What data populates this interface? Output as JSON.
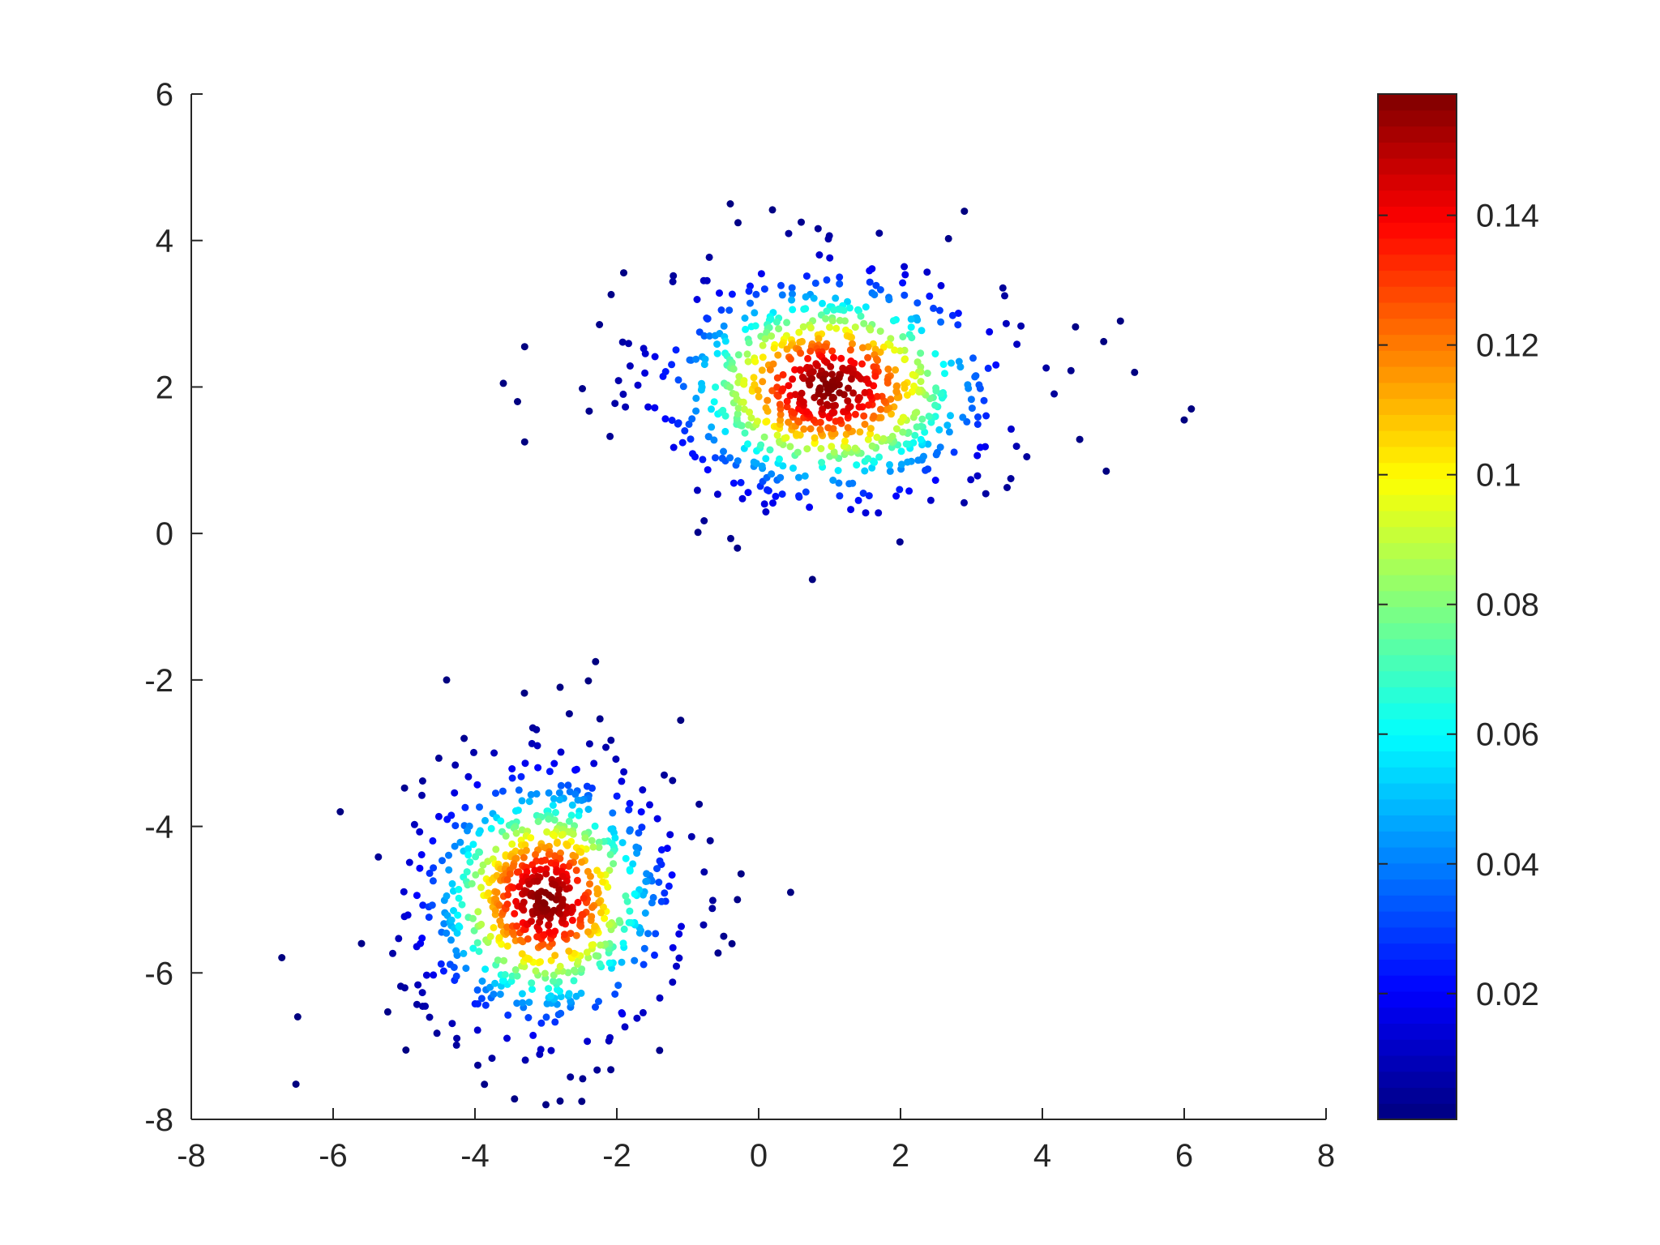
{
  "chart_data": {
    "type": "scatter",
    "title": "",
    "xlabel": "",
    "ylabel": "",
    "xlim": [
      -8,
      8
    ],
    "ylim": [
      -8,
      6
    ],
    "xticks": [
      "-8",
      "-6",
      "-4",
      "-2",
      "0",
      "2",
      "4",
      "6",
      "8"
    ],
    "yticks": [
      "-8",
      "-6",
      "-4",
      "-2",
      "0",
      "2",
      "4",
      "6"
    ],
    "grid": false,
    "box": false,
    "colormap": "jet",
    "colorbar": {
      "position": "right",
      "range": [
        0.0006,
        0.1587
      ],
      "ticks": [
        "0.02",
        "0.04",
        "0.06",
        "0.08",
        "0.1",
        "0.12",
        "0.14"
      ]
    },
    "color_encodes": "density",
    "clusters": [
      {
        "center": [
          1,
          2
        ],
        "std": [
          1.2,
          0.8
        ],
        "count": 800,
        "peak_density": 0.158
      },
      {
        "center": [
          -3,
          -5
        ],
        "std": [
          0.9,
          0.9
        ],
        "count": 800,
        "peak_density": 0.158
      }
    ],
    "outlier_points": [
      [
        -0.4,
        4.5
      ],
      [
        2.9,
        4.4
      ],
      [
        0.6,
        4.25
      ],
      [
        1.7,
        4.1
      ],
      [
        -3.6,
        2.05
      ],
      [
        -3.4,
        1.8
      ],
      [
        -3.3,
        1.25
      ],
      [
        -3.3,
        2.55
      ],
      [
        6.1,
        1.7
      ],
      [
        6.0,
        1.55
      ],
      [
        5.3,
        2.2
      ],
      [
        5.1,
        2.9
      ],
      [
        4.9,
        0.85
      ],
      [
        -0.3,
        -0.2
      ],
      [
        -2.3,
        -1.75
      ],
      [
        -4.4,
        -2.0
      ],
      [
        -2.8,
        -2.1
      ],
      [
        -6.5,
        -6.6
      ],
      [
        -5.9,
        -3.8
      ],
      [
        -5.6,
        -5.6
      ],
      [
        0.45,
        -4.9
      ],
      [
        -0.3,
        -5.0
      ],
      [
        -3.0,
        -7.8
      ],
      [
        -2.8,
        -7.75
      ],
      [
        -1.1,
        -2.55
      ]
    ]
  },
  "colors": {
    "axis": "#262626",
    "background": "#ffffff"
  }
}
